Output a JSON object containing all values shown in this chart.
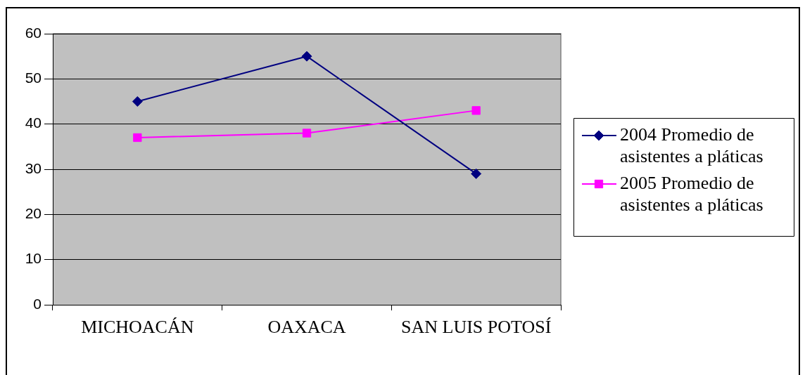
{
  "chart_data": {
    "type": "line",
    "categories": [
      "MICHOACÁN",
      "OAXACA",
      "SAN LUIS POTOSÍ"
    ],
    "series": [
      {
        "name": "2004 Promedio de asistentes a pláticas",
        "color": "#000080",
        "marker": "diamond",
        "values": [
          45,
          55,
          29
        ]
      },
      {
        "name": "2005 Promedio de asistentes a pláticas",
        "color": "#ff00ff",
        "marker": "square",
        "values": [
          37,
          38,
          43
        ]
      }
    ],
    "ylim": [
      0,
      60
    ],
    "yticks": [
      0,
      10,
      20,
      30,
      40,
      50,
      60
    ],
    "grid": "y",
    "legend": "right"
  }
}
